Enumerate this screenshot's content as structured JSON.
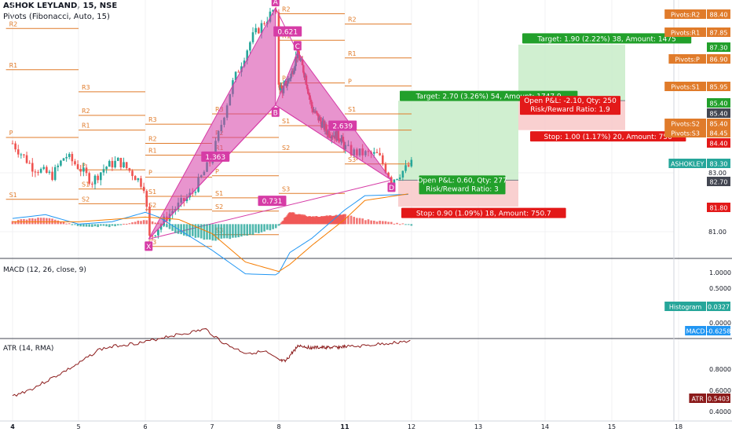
{
  "header": {
    "symbol": "ASHOK LEYLAND, 15, NSE",
    "pivots_indicator": "Pivots (Fibonacci, Auto, 15)"
  },
  "colors": {
    "up": "#26a69a",
    "down": "#ef5350",
    "pivot": "#e07b2a",
    "harmonic": "#d63ca6",
    "target_fill": "#c8ecc8",
    "stop_fill": "#f8c8c8",
    "green_label": "#22a02b",
    "red_label": "#e31919",
    "macd": "#2196f3",
    "signal": "#f57c00",
    "atr": "#8b1a1a",
    "axis_text": "#131722"
  },
  "chart_data": [
    {
      "type": "line",
      "name": "price",
      "x_labels": [
        "4",
        "5",
        "6",
        "7",
        "8",
        "11",
        "12",
        "13",
        "14",
        "15",
        "18"
      ],
      "y_ticks": [
        "81.00",
        "83.00"
      ],
      "harmonic_points": [
        {
          "label": "X",
          "day": 6.05,
          "price": 80.75
        },
        {
          "label": "A",
          "day": 7.95,
          "price": 88.6
        },
        {
          "label": "B",
          "day": 7.95,
          "price": 85.3
        },
        {
          "label": "C",
          "day": 8.85,
          "price": 87.1
        },
        {
          "label": "D",
          "day": 11.7,
          "price": 82.75
        }
      ],
      "ratios": [
        {
          "text": "0.621",
          "day": 8.4,
          "price": 87.8
        },
        {
          "text": "1.363",
          "day": 7.05,
          "price": 83.55
        },
        {
          "text": "2.639",
          "day": 10.9,
          "price": 84.6
        },
        {
          "text": "0.731",
          "day": 7.9,
          "price": 82.05
        }
      ],
      "pivot_lines": [
        {
          "label": "R2",
          "d0": 3.9,
          "d1": 5.0,
          "price": 87.9
        },
        {
          "label": "R1",
          "d0": 3.9,
          "d1": 5.0,
          "price": 86.5
        },
        {
          "label": "P",
          "d0": 3.9,
          "d1": 5.0,
          "price": 84.2
        },
        {
          "label": "S1",
          "d0": 3.9,
          "d1": 5.0,
          "price": 82.1
        },
        {
          "label": "R3",
          "d0": 5.0,
          "d1": 6.0,
          "price": 85.75
        },
        {
          "label": "R2",
          "d0": 5.0,
          "d1": 6.0,
          "price": 84.95
        },
        {
          "label": "R1",
          "d0": 5.0,
          "d1": 6.0,
          "price": 84.45
        },
        {
          "label": "P",
          "d0": 5.0,
          "d1": 6.0,
          "price": 83.1
        },
        {
          "label": "S1",
          "d0": 5.0,
          "d1": 6.0,
          "price": 82.45
        },
        {
          "label": "S2",
          "d0": 5.0,
          "d1": 6.0,
          "price": 81.95
        },
        {
          "label": "R3",
          "d0": 6.0,
          "d1": 7.0,
          "price": 84.65
        },
        {
          "label": "R2",
          "d0": 6.0,
          "d1": 7.0,
          "price": 84.0
        },
        {
          "label": "R1",
          "d0": 6.0,
          "d1": 7.0,
          "price": 83.6
        },
        {
          "label": "P",
          "d0": 6.0,
          "d1": 7.0,
          "price": 82.85
        },
        {
          "label": "S1",
          "d0": 6.0,
          "d1": 7.0,
          "price": 82.2
        },
        {
          "label": "S2",
          "d0": 6.0,
          "d1": 7.0,
          "price": 81.75
        },
        {
          "label": "S3",
          "d0": 6.0,
          "d1": 7.0,
          "price": 80.5
        },
        {
          "label": "R3",
          "d0": 7.0,
          "d1": 8.0,
          "price": 85.0
        },
        {
          "label": "R2",
          "d0": 7.0,
          "d1": 8.0,
          "price": 84.2
        },
        {
          "label": "R1",
          "d0": 7.0,
          "d1": 8.0,
          "price": 83.7
        },
        {
          "label": "P",
          "d0": 7.0,
          "d1": 8.0,
          "price": 82.9
        },
        {
          "label": "S1",
          "d0": 7.0,
          "d1": 8.0,
          "price": 82.15
        },
        {
          "label": "S2",
          "d0": 7.0,
          "d1": 8.0,
          "price": 81.7
        },
        {
          "label": "S3",
          "d0": 7.0,
          "d1": 8.0,
          "price": 80.9
        },
        {
          "label": "R2",
          "d0": 8.0,
          "d1": 11.0,
          "price": 88.4
        },
        {
          "label": "R1",
          "d0": 8.0,
          "d1": 11.0,
          "price": 87.5
        },
        {
          "label": "P",
          "d0": 8.0,
          "d1": 11.0,
          "price": 86.05
        },
        {
          "label": "S1",
          "d0": 8.0,
          "d1": 11.0,
          "price": 84.6
        },
        {
          "label": "S2",
          "d0": 8.0,
          "d1": 11.0,
          "price": 83.7
        },
        {
          "label": "S3",
          "d0": 8.0,
          "d1": 11.0,
          "price": 82.3
        },
        {
          "label": "R2",
          "d0": 11.0,
          "d1": 12.0,
          "price": 88.05
        },
        {
          "label": "R1",
          "d0": 11.0,
          "d1": 12.0,
          "price": 86.9
        },
        {
          "label": "P",
          "d0": 11.0,
          "d1": 12.0,
          "price": 85.95
        },
        {
          "label": "S1",
          "d0": 11.0,
          "d1": 12.0,
          "price": 85.0
        },
        {
          "label": "S2",
          "d0": 11.0,
          "d1": 12.0,
          "price": 84.45
        },
        {
          "label": "S3",
          "d0": 11.0,
          "d1": 12.0,
          "price": 83.3
        }
      ],
      "long_position": {
        "d0": 11.8,
        "d1": 13.6,
        "entry": 82.75,
        "target": 85.45,
        "stop": 81.85,
        "target_label": "Target: 2.70 (3.26%) 54, Amount: 1747.9",
        "stop_label": "Stop: 0.90 (1.09%) 18, Amount: 750.7",
        "pnl_label": "Open P&L: 0.60, Qty: 277",
        "rr_label": "Risk/Reward Ratio: 3"
      },
      "short_position": {
        "d0": 13.6,
        "d1": 15.6,
        "entry": 85.45,
        "target": 87.35,
        "stop": 84.45,
        "target_label": "Target: 1.90 (2.22%) 38, Amount: 1475",
        "stop_label": "Stop: 1.00 (1.17%) 20, Amount: 750",
        "pnl_label": "Open P&L: -2.10, Qty: 250",
        "rr_label": "Risk/Reward Ratio: 1.9"
      },
      "price_axis_labels": [
        {
          "text": "Pivots:R2",
          "value": "88.40",
          "kind": "pivot"
        },
        {
          "text": "Pivots:R1",
          "value": "87.85",
          "kind": "pivot"
        },
        {
          "text": "",
          "value": "87.30",
          "kind": "green"
        },
        {
          "text": "Pivots:P",
          "value": "86.90",
          "kind": "pivot"
        },
        {
          "text": "Pivots:S1",
          "value": "85.95",
          "kind": "pivot"
        },
        {
          "text": "",
          "value": "85.40",
          "kind": "green"
        },
        {
          "text": "",
          "value": "85.40",
          "kind": "dark"
        },
        {
          "text": "Pivots:S2",
          "value": "85.40",
          "kind": "pivot"
        },
        {
          "text": "Pivots:S3",
          "value": "84.45",
          "kind": "pivot"
        },
        {
          "text": "",
          "value": "84.40",
          "kind": "red"
        },
        {
          "text": "ASHOKLEY",
          "value": "83.30",
          "kind": "teal"
        },
        {
          "text": "",
          "value": "82.70",
          "kind": "dark"
        },
        {
          "text": "",
          "value": "81.80",
          "kind": "red"
        }
      ]
    },
    {
      "type": "line",
      "name": "macd_panel",
      "title": "MACD (12, 26, close, 9)",
      "y_ticks": [
        "1.0000",
        "0.5000",
        "0.0000"
      ],
      "labels": [
        {
          "text": "Histogram",
          "value": "0.0327",
          "kind": "teal"
        },
        {
          "text": "MACD",
          "value": "-0.6258",
          "kind": "blue"
        }
      ]
    },
    {
      "type": "line",
      "name": "atr_panel",
      "title": "ATR (14, RMA)",
      "y_ticks": [
        "0.8000",
        "0.6000",
        "0.4000"
      ],
      "labels": [
        {
          "text": "ATR",
          "value": "0.5403",
          "kind": "atr"
        }
      ]
    }
  ]
}
